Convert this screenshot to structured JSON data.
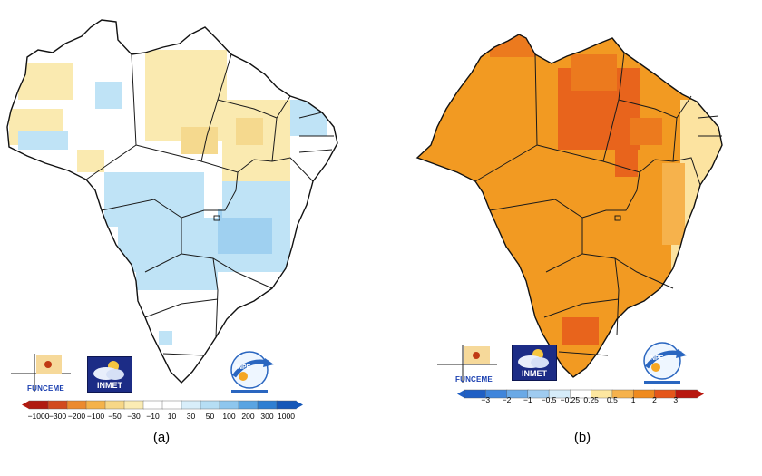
{
  "panels": [
    {
      "label": "(a)",
      "scale_labels": [
        "−1000",
        "−300",
        "−200",
        "−100",
        "−50",
        "−30",
        "−10",
        "10",
        "30",
        "50",
        "100",
        "200",
        "300",
        "1000"
      ],
      "scale_colors": [
        "#b01a10",
        "#d24a1e",
        "#ec8a2e",
        "#f4b24a",
        "#f7d787",
        "#fbecb4",
        "#ffffff",
        "#ffffff",
        "#d8eefa",
        "#b6def4",
        "#8ec6ee",
        "#5aa4e2",
        "#2f7fd2",
        "#1557b8"
      ]
    },
    {
      "label": "(b)",
      "scale_labels": [
        "−3",
        "−2",
        "−1",
        "−0.5",
        "−0.25",
        "0.25",
        "0.5",
        "1",
        "2",
        "3"
      ],
      "scale_colors": [
        "#1f5fc4",
        "#3f85db",
        "#6aa9e6",
        "#9fcbf0",
        "#d6ecf9",
        "#ffffff",
        "#fde7a0",
        "#f6b24c",
        "#ef8a1e",
        "#e5561a",
        "#b8170f"
      ]
    }
  ],
  "logos": {
    "funceme": "FUNCEME",
    "inmet": "INMET",
    "inpe": "INPE"
  },
  "colors": {
    "map_a_base": "#ffffff",
    "map_a_dry": "#faeab0",
    "map_a_wet": "#bfe3f6",
    "map_a_wet_strong": "#9fd0f0",
    "map_b_base": "#f29a22",
    "map_b_hot": "#e8641c",
    "map_b_mild": "#fce3a0"
  }
}
